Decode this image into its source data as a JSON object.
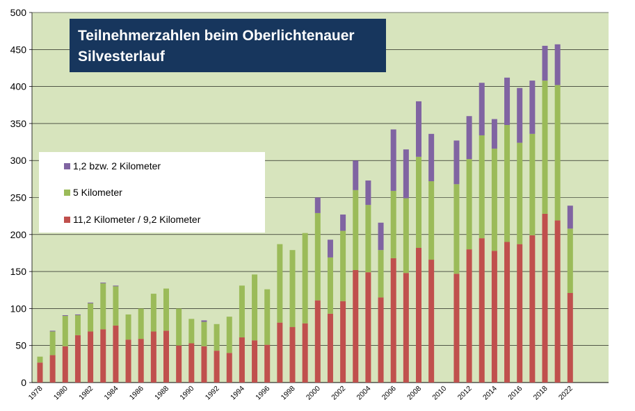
{
  "title_line1": "Teilnehmerzahlen beim Oberlichtenauer",
  "title_line2": "Silvesterlauf",
  "colors": {
    "plot_bg": "#d7e4bd",
    "grid": "#000000",
    "red": "#c0504d",
    "green": "#9bbb59",
    "purple": "#8064a2",
    "title_bg": "#17365d"
  },
  "legend": [
    {
      "label": "1,2 bzw. 2 Kilometer",
      "color": "#8064a2"
    },
    {
      "label": "5 Kilometer",
      "color": "#9bbb59"
    },
    {
      "label": "11,2 Kilometer / 9,2 Kilometer",
      "color": "#c0504d"
    }
  ],
  "chart_data": {
    "type": "bar",
    "stacked": true,
    "title": "Teilnehmerzahlen beim Oberlichtenauer Silvesterlauf",
    "ylim": [
      0,
      500
    ],
    "y_ticks": [
      "0",
      "50",
      "100",
      "150",
      "200",
      "250",
      "300",
      "350",
      "400",
      "450",
      "500"
    ],
    "x_tick_labels": [
      "1978",
      "1980",
      "1982",
      "1984",
      "1986",
      "1988",
      "1990",
      "1992",
      "1994",
      "1996",
      "1998",
      "2000",
      "2002",
      "2004",
      "2006",
      "2008",
      "2010",
      "2012",
      "2014",
      "2016",
      "2018",
      "2022"
    ],
    "legend_position": "left-middle",
    "grid": true,
    "categories": [
      "1978",
      "1979",
      "1980",
      "1981",
      "1982",
      "1983",
      "1984",
      "1985",
      "1986",
      "1987",
      "1988",
      "1989",
      "1990",
      "1991",
      "1992",
      "1993",
      "1994",
      "1995",
      "1996",
      "1997",
      "1998",
      "1999",
      "2000",
      "2001",
      "2002",
      "2003",
      "2004",
      "2005",
      "2006",
      "2007",
      "2008",
      "2009",
      "2010",
      "2011",
      "2012",
      "2013",
      "2014",
      "2015",
      "2016",
      "2017",
      "2018",
      "2019",
      "2022"
    ],
    "series": [
      {
        "name": "11,2 Kilometer / 9,2 Kilometer",
        "color": "#c0504d",
        "values": [
          27,
          37,
          49,
          64,
          69,
          72,
          77,
          58,
          59,
          69,
          70,
          50,
          53,
          49,
          43,
          40,
          61,
          57,
          51,
          81,
          75,
          80,
          111,
          93,
          110,
          152,
          149,
          115,
          168,
          148,
          182,
          166,
          0,
          147,
          180,
          195,
          178,
          190,
          187,
          199,
          228,
          219,
          121
        ]
      },
      {
        "name": "5 Kilometer",
        "color": "#9bbb59",
        "values": [
          8,
          32,
          41,
          27,
          38,
          62,
          53,
          34,
          41,
          51,
          57,
          50,
          33,
          33,
          36,
          49,
          70,
          89,
          75,
          106,
          104,
          122,
          118,
          76,
          95,
          108,
          91,
          64,
          91,
          101,
          123,
          106,
          0,
          121,
          122,
          139,
          138,
          158,
          137,
          137,
          180,
          183,
          87
        ]
      },
      {
        "name": "1,2 bzw. 2 Kilometer",
        "color": "#8064a2",
        "values": [
          0,
          1,
          1,
          1,
          1,
          1,
          1,
          0,
          0,
          0,
          0,
          0,
          0,
          2,
          0,
          0,
          0,
          0,
          0,
          0,
          0,
          0,
          21,
          24,
          22,
          40,
          33,
          37,
          83,
          66,
          75,
          64,
          0,
          59,
          58,
          71,
          40,
          64,
          74,
          72,
          47,
          55,
          31
        ]
      }
    ]
  }
}
